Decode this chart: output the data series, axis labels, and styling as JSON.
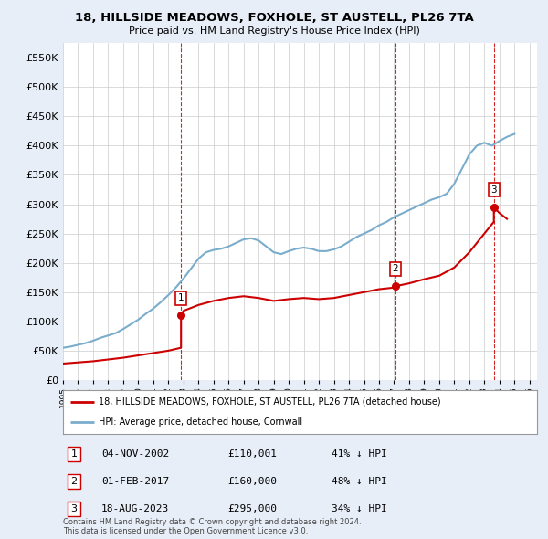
{
  "title": "18, HILLSIDE MEADOWS, FOXHOLE, ST AUSTELL, PL26 7TA",
  "subtitle": "Price paid vs. HM Land Registry's House Price Index (HPI)",
  "legend_line1": "18, HILLSIDE MEADOWS, FOXHOLE, ST AUSTELL, PL26 7TA (detached house)",
  "legend_line2": "HPI: Average price, detached house, Cornwall",
  "footer1": "Contains HM Land Registry data © Crown copyright and database right 2024.",
  "footer2": "This data is licensed under the Open Government Licence v3.0.",
  "sale_color": "#cc0000",
  "hpi_color": "#7aadcc",
  "vline_color": "#cc0000",
  "background_color": "#e8eef8",
  "plot_bg": "#ffffff",
  "ylim": [
    0,
    575000
  ],
  "yticks": [
    0,
    50000,
    100000,
    150000,
    200000,
    250000,
    300000,
    350000,
    400000,
    450000,
    500000,
    550000
  ],
  "sales": [
    {
      "date": 2002.84,
      "price": 110001,
      "label": "1"
    },
    {
      "date": 2017.08,
      "price": 160000,
      "label": "2"
    },
    {
      "date": 2023.63,
      "price": 295000,
      "label": "3"
    }
  ],
  "vlines": [
    2002.84,
    2017.08,
    2023.63
  ],
  "table": [
    [
      "1",
      "04-NOV-2002",
      "£110,001",
      "41% ↓ HPI"
    ],
    [
      "2",
      "01-FEB-2017",
      "£160,000",
      "48% ↓ HPI"
    ],
    [
      "3",
      "18-AUG-2023",
      "£295,000",
      "34% ↓ HPI"
    ]
  ],
  "hpi_data_x": [
    1995.0,
    1995.5,
    1996.0,
    1996.5,
    1997.0,
    1997.5,
    1998.0,
    1998.5,
    1999.0,
    1999.5,
    2000.0,
    2000.5,
    2001.0,
    2001.5,
    2002.0,
    2002.5,
    2003.0,
    2003.5,
    2004.0,
    2004.5,
    2005.0,
    2005.5,
    2006.0,
    2006.5,
    2007.0,
    2007.5,
    2008.0,
    2008.5,
    2009.0,
    2009.5,
    2010.0,
    2010.5,
    2011.0,
    2011.5,
    2012.0,
    2012.5,
    2013.0,
    2013.5,
    2014.0,
    2014.5,
    2015.0,
    2015.5,
    2016.0,
    2016.5,
    2017.0,
    2017.5,
    2018.0,
    2018.5,
    2019.0,
    2019.5,
    2020.0,
    2020.5,
    2021.0,
    2021.5,
    2022.0,
    2022.5,
    2023.0,
    2023.5,
    2024.0,
    2024.5,
    2025.0
  ],
  "hpi_data_y": [
    55000,
    57000,
    60000,
    63000,
    67000,
    72000,
    76000,
    80000,
    87000,
    95000,
    103000,
    113000,
    122000,
    133000,
    145000,
    158000,
    173000,
    190000,
    207000,
    218000,
    222000,
    224000,
    228000,
    234000,
    240000,
    242000,
    238000,
    228000,
    218000,
    215000,
    220000,
    224000,
    226000,
    224000,
    220000,
    220000,
    223000,
    228000,
    236000,
    244000,
    250000,
    256000,
    264000,
    270000,
    278000,
    284000,
    290000,
    296000,
    302000,
    308000,
    312000,
    318000,
    335000,
    360000,
    385000,
    400000,
    405000,
    400000,
    408000,
    415000,
    420000
  ],
  "sold_hpi_x": [
    1995.0,
    1996.0,
    1997.0,
    1998.0,
    1999.0,
    2000.0,
    2001.0,
    2002.0,
    2002.84,
    2002.84,
    2003.0,
    2004.0,
    2005.0,
    2006.0,
    2007.0,
    2008.0,
    2009.0,
    2010.0,
    2011.0,
    2012.0,
    2013.0,
    2014.0,
    2015.0,
    2016.0,
    2017.08,
    2017.08,
    2018.0,
    2019.0,
    2020.0,
    2021.0,
    2022.0,
    2023.0,
    2023.63,
    2023.63,
    2024.0,
    2024.5
  ],
  "sold_hpi_y": [
    28000,
    30000,
    32000,
    35000,
    38000,
    42000,
    46000,
    50000,
    55000,
    110001,
    118000,
    128000,
    135000,
    140000,
    143000,
    140000,
    135000,
    138000,
    140000,
    138000,
    140000,
    145000,
    150000,
    155000,
    158000,
    160000,
    165000,
    172000,
    178000,
    192000,
    218000,
    250000,
    270000,
    295000,
    285000,
    275000
  ]
}
